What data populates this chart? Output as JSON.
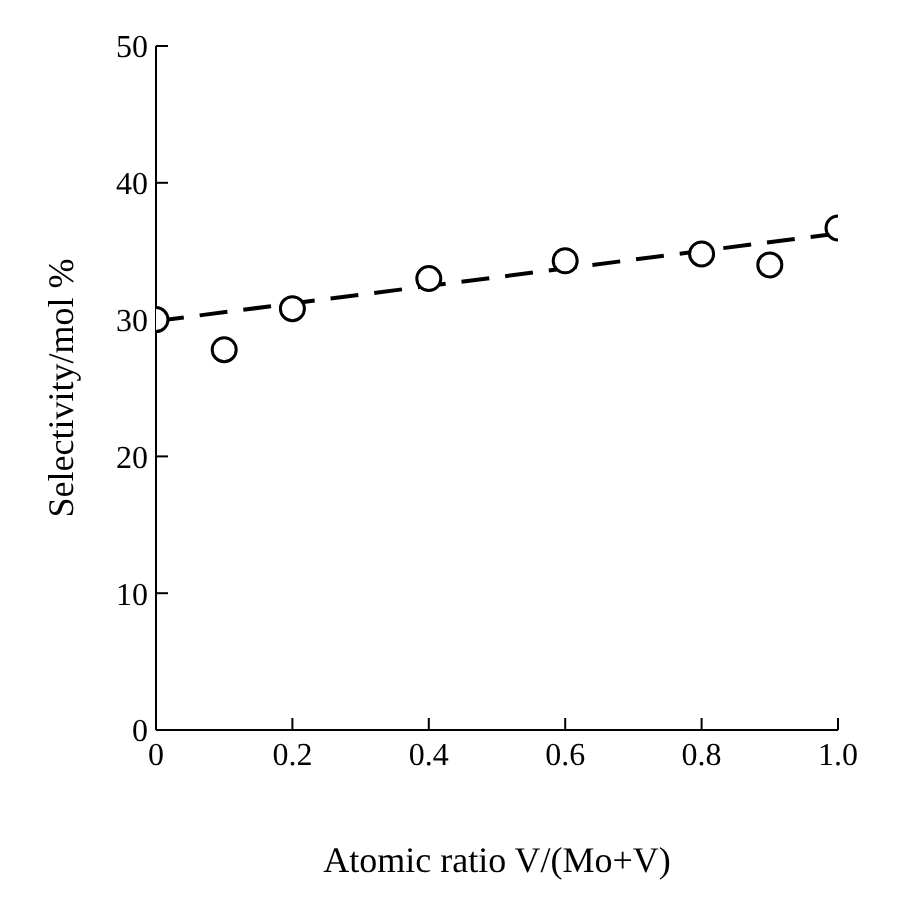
{
  "chart_data": {
    "type": "scatter",
    "xlabel": "Atomic ratio V/(Mo+V)",
    "ylabel": "Selectivity/mol %",
    "xlim": [
      0,
      1
    ],
    "xticks": [
      0,
      0.2,
      0.4,
      0.6,
      0.8,
      {
        "value": 1,
        "label": "1.0"
      }
    ],
    "ylim": [
      0,
      50
    ],
    "yticks": [
      0,
      10,
      20,
      30,
      40,
      50
    ],
    "grid": false,
    "series": [
      {
        "marker": "circle",
        "color": "#000000",
        "x": [
          0,
          0.1,
          0.2,
          0.4,
          0.6,
          0.8,
          0.9,
          1.0
        ],
        "values": [
          30,
          27.8,
          30.8,
          33,
          34.3,
          34.8,
          34,
          36.7
        ]
      },
      {
        "type": "line",
        "marker": "none",
        "line_style": "dashed",
        "color": "#000000",
        "x": [
          0,
          1
        ],
        "values": [
          29.9,
          36.3
        ]
      }
    ]
  }
}
